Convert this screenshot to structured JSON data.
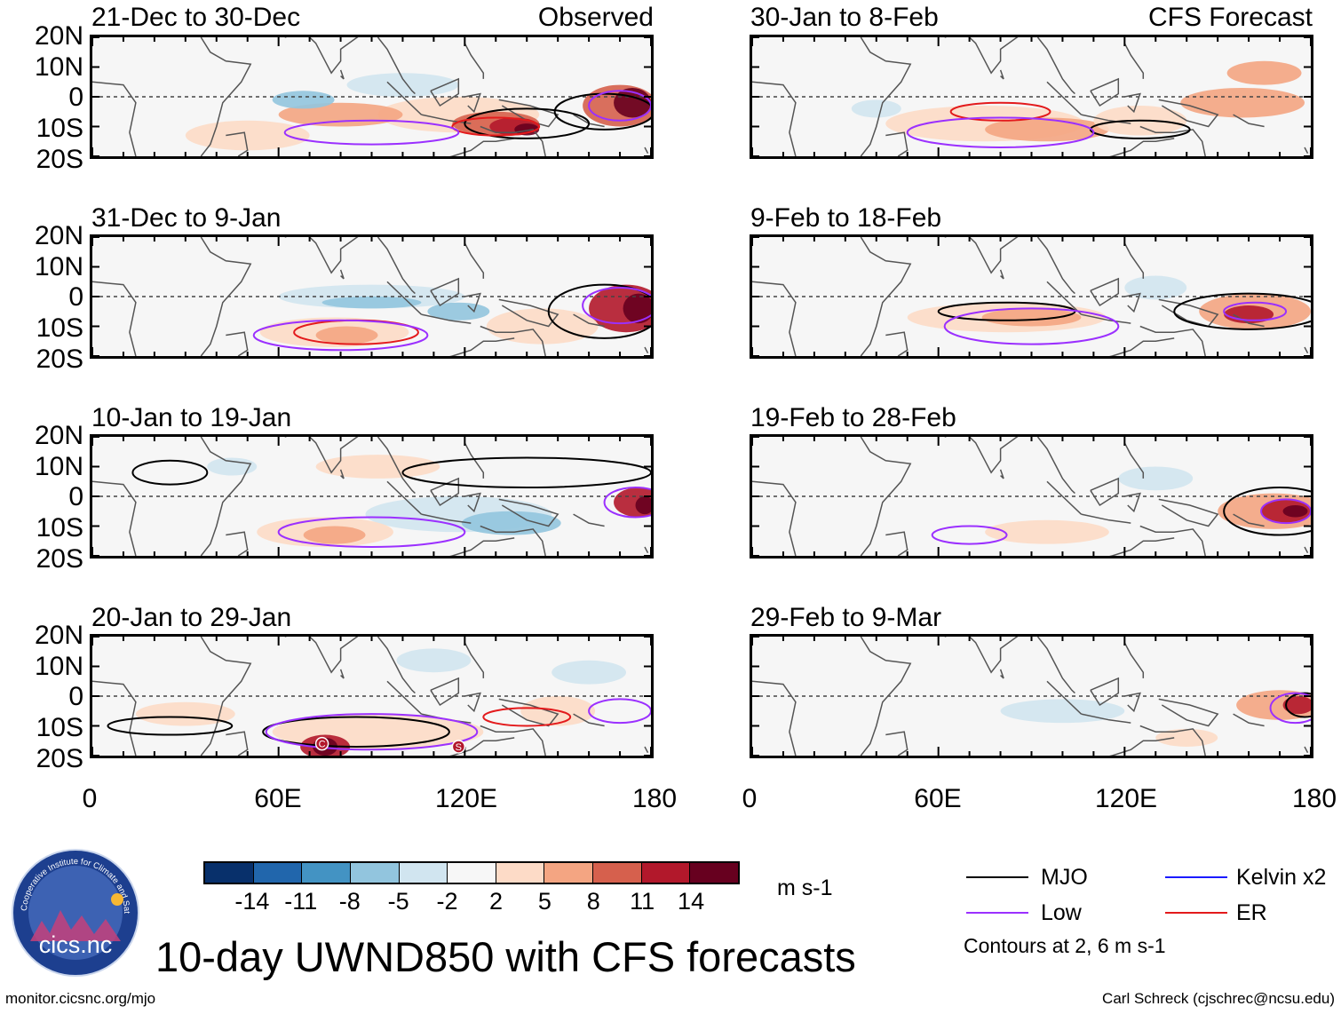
{
  "panels": [
    {
      "title": "21-Dec to 30-Dec",
      "tag": "Observed",
      "pattern": 0
    },
    {
      "title": "30-Jan to 8-Feb",
      "tag": "CFS Forecast",
      "pattern": 1
    },
    {
      "title": "31-Dec to 9-Jan",
      "tag": "",
      "pattern": 2
    },
    {
      "title": "9-Feb to 18-Feb",
      "tag": "",
      "pattern": 3
    },
    {
      "title": "10-Jan to 19-Jan",
      "tag": "",
      "pattern": 4
    },
    {
      "title": "19-Feb to 28-Feb",
      "tag": "",
      "pattern": 5
    },
    {
      "title": "20-Jan to 29-Jan",
      "tag": "",
      "pattern": 6
    },
    {
      "title": "29-Feb to 9-Mar",
      "tag": "",
      "pattern": 7
    }
  ],
  "y_axis": [
    "20N",
    "10N",
    "0",
    "10S",
    "20S"
  ],
  "x_axis": [
    "0",
    "60E",
    "120E",
    "180"
  ],
  "markers": [
    "C",
    "S"
  ],
  "colorbar": {
    "labels": [
      "-14",
      "-11",
      "-8",
      "-5",
      "-2",
      "2",
      "5",
      "8",
      "11",
      "14"
    ],
    "colors": [
      "#08306b",
      "#2166ac",
      "#4393c3",
      "#92c5de",
      "#d1e5f0",
      "#f7f7f7",
      "#fddbc7",
      "#f4a582",
      "#d6604d",
      "#b2182b",
      "#67001f"
    ],
    "units": "m s-1"
  },
  "legend": {
    "items": [
      {
        "label": "MJO",
        "color": "#000000"
      },
      {
        "label": "Kelvin x2",
        "color": "#1a1aff"
      },
      {
        "label": "Low",
        "color": "#9b30ff"
      },
      {
        "label": "ER",
        "color": "#e31a1c"
      }
    ],
    "contours_note": "Contours at 2, 6 m s-1"
  },
  "logo_text": "cics.nc",
  "logo_ring_text": "Cooperative Institute for Climate and Satellites",
  "main_title": "10-day UWND850 with CFS forecasts",
  "footer_left": "monitor.cicsnc.org/mjo",
  "footer_right": "Carl Schreck (cjschrec@ncsu.edu)"
}
